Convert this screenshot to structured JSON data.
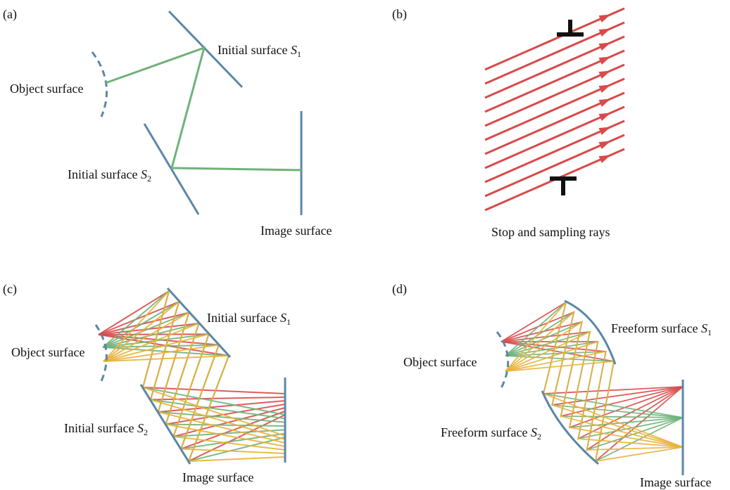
{
  "colors": {
    "surface": "#5b87a8",
    "ray_green": "#6fb27a",
    "ray_red": "#d94a4a",
    "ray_yellow": "#e8b23a",
    "stop": "#111111"
  },
  "panels": {
    "a": {
      "tag": "(a)",
      "object": "Object surface",
      "s1_prefix": "Initial surface ",
      "s1_var": "S",
      "s1_sub": "1",
      "s2_prefix": "Initial surface ",
      "s2_var": "S",
      "s2_sub": "2",
      "image": "Image surface"
    },
    "b": {
      "tag": "(b)",
      "caption": "Stop and sampling rays"
    },
    "c": {
      "tag": "(c)",
      "object": "Object surface",
      "s1_prefix": "Initial surface ",
      "s1_var": "S",
      "s1_sub": "1",
      "s2_prefix": "Initial surface ",
      "s2_var": "S",
      "s2_sub": "2",
      "image": "Image surface"
    },
    "d": {
      "tag": "(d)",
      "object": "Object surface",
      "s1_prefix": "Freeform surface ",
      "s1_var": "S",
      "s1_sub": "1",
      "s2_prefix": "Freeform surface ",
      "s2_var": "S",
      "s2_sub": "2",
      "image": "Image surface"
    }
  }
}
